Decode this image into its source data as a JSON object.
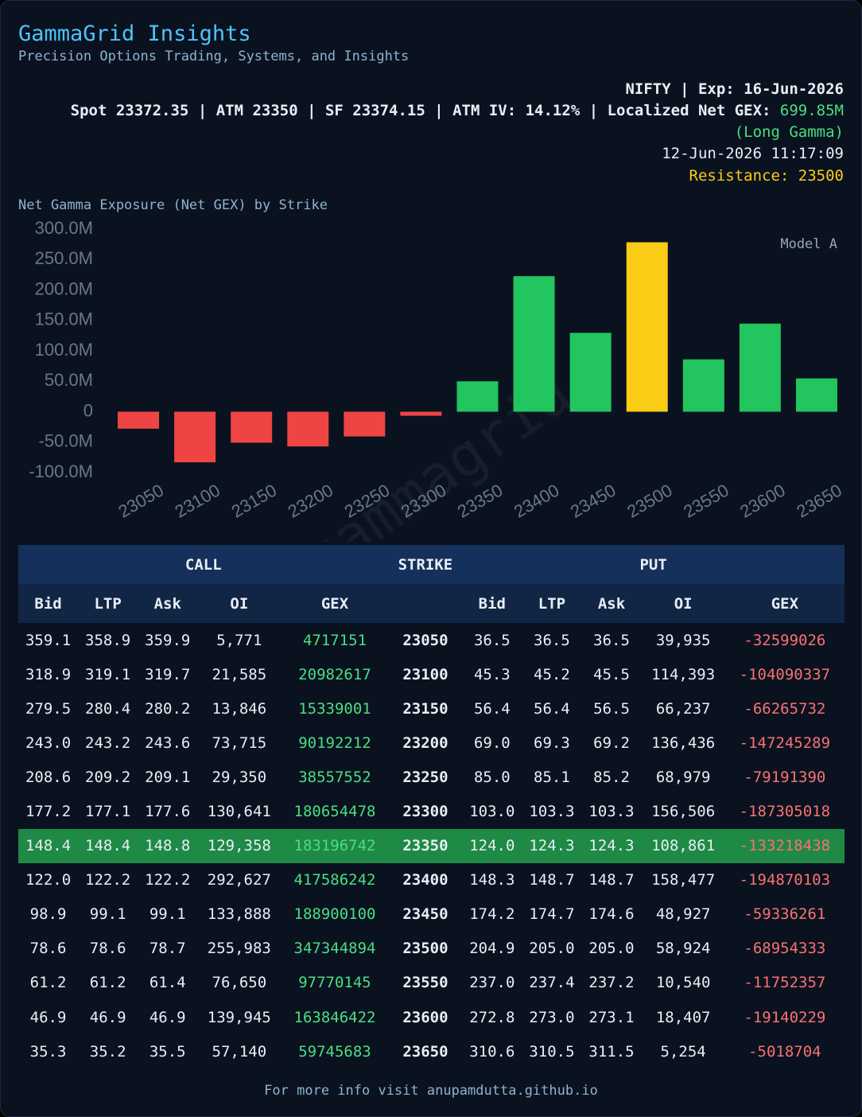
{
  "header": {
    "title": "GammaGrid Insights",
    "subtitle": "Precision Options Trading, Systems, and Insights",
    "instrument_line": "NIFTY | Exp: 16-Jun-2026",
    "spot_line": "Spot 23372.35 | ATM 23350 | SF 23374.15 | ATM IV: 14.12% | Localized Net GEX: ",
    "net_gex": "699.85M",
    "gamma_state": "(Long Gamma)",
    "timestamp": "12-Jun-2026 11:17:09",
    "resistance": "Resistance: 23500"
  },
  "chart_data": {
    "type": "bar",
    "title": "Net Gamma Exposure (Net GEX) by Strike",
    "annotation": "Model A",
    "watermark": "@gammagrid",
    "categories": [
      "23050",
      "23100",
      "23150",
      "23200",
      "23250",
      "23300",
      "23350",
      "23400",
      "23450",
      "23500",
      "23550",
      "23600",
      "23650"
    ],
    "values": [
      -27881875,
      -83107720,
      -50926731,
      -57053077,
      -40633838,
      -6650540,
      49978304,
      222716139,
      129563839,
      278390561,
      86017788,
      144706193,
      54726979
    ],
    "colors": [
      "#ef4444",
      "#ef4444",
      "#ef4444",
      "#ef4444",
      "#ef4444",
      "#ef4444",
      "#22c55e",
      "#22c55e",
      "#22c55e",
      "#facc15",
      "#22c55e",
      "#22c55e",
      "#22c55e"
    ],
    "ylim": [
      -100000000,
      300000000
    ],
    "yticks": [
      {
        "value": -100000000,
        "label": "-100.0M"
      },
      {
        "value": -50000000,
        "label": "-50.0M"
      },
      0,
      {
        "value": 50000000,
        "label": "50.0M"
      },
      {
        "value": 100000000,
        "label": "100.0M"
      },
      {
        "value": 150000000,
        "label": "150.0M"
      },
      {
        "value": 200000000,
        "label": "200.0M"
      },
      {
        "value": 250000000,
        "label": "250.0M"
      },
      {
        "value": 300000000,
        "label": "300.0M"
      }
    ],
    "grid": false
  },
  "table": {
    "groups": [
      "CALL",
      "STRIKE",
      "PUT"
    ],
    "columns": [
      "Bid",
      "LTP",
      "Ask",
      "OI",
      "GEX",
      null,
      "Bid",
      "LTP",
      "Ask",
      "OI",
      "GEX"
    ],
    "highlight_row": 6,
    "rows": [
      [
        "359.1",
        "358.9",
        "359.9",
        "5,771",
        "4717151",
        "23050",
        "36.5",
        "36.5",
        "36.5",
        "39,935",
        "-32599026"
      ],
      [
        "318.9",
        "319.1",
        "319.7",
        "21,585",
        "20982617",
        "23100",
        "45.3",
        "45.2",
        "45.5",
        "114,393",
        "-104090337"
      ],
      [
        "279.5",
        "280.4",
        "280.2",
        "13,846",
        "15339001",
        "23150",
        "56.4",
        "56.4",
        "56.5",
        "66,237",
        "-66265732"
      ],
      [
        "243.0",
        "243.2",
        "243.6",
        "73,715",
        "90192212",
        "23200",
        "69.0",
        "69.3",
        "69.2",
        "136,436",
        "-147245289"
      ],
      [
        "208.6",
        "209.2",
        "209.1",
        "29,350",
        "38557552",
        "23250",
        "85.0",
        "85.1",
        "85.2",
        "68,979",
        "-79191390"
      ],
      [
        "177.2",
        "177.1",
        "177.6",
        "130,641",
        "180654478",
        "23300",
        "103.0",
        "103.3",
        "103.3",
        "156,506",
        "-187305018"
      ],
      [
        "148.4",
        "148.4",
        "148.8",
        "129,358",
        "183196742",
        "23350",
        "124.0",
        "124.3",
        "124.3",
        "108,861",
        "-133218438"
      ],
      [
        "122.0",
        "122.2",
        "122.2",
        "292,627",
        "417586242",
        "23400",
        "148.3",
        "148.7",
        "148.7",
        "158,477",
        "-194870103"
      ],
      [
        "98.9",
        "99.1",
        "99.1",
        "133,888",
        "188900100",
        "23450",
        "174.2",
        "174.7",
        "174.6",
        "48,927",
        "-59336261"
      ],
      [
        "78.6",
        "78.6",
        "78.7",
        "255,983",
        "347344894",
        "23500",
        "204.9",
        "205.0",
        "205.0",
        "58,924",
        "-68954333"
      ],
      [
        "61.2",
        "61.2",
        "61.4",
        "76,650",
        "97770145",
        "23550",
        "237.0",
        "237.4",
        "237.2",
        "10,540",
        "-11752357"
      ],
      [
        "46.9",
        "46.9",
        "46.9",
        "139,945",
        "163846422",
        "23600",
        "272.8",
        "273.0",
        "273.1",
        "18,407",
        "-19140229"
      ],
      [
        "35.3",
        "35.2",
        "35.5",
        "57,140",
        "59745683",
        "23650",
        "310.6",
        "310.5",
        "311.5",
        "5,254",
        "-5018704"
      ]
    ]
  },
  "footer": {
    "text": "For more info visit anupamdutta.github.io"
  }
}
